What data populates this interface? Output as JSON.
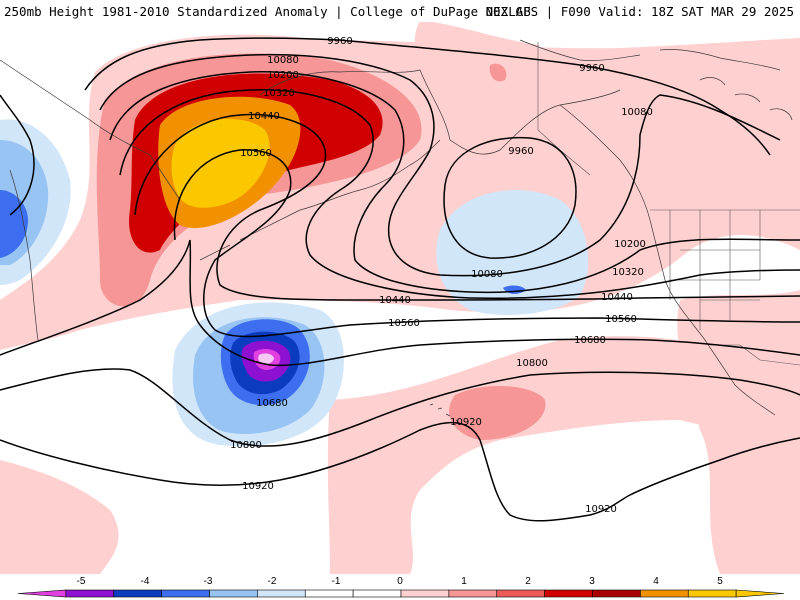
{
  "header": {
    "title": "250mb Height 1981-2010 Standardized Anomaly | College of DuPage NEXLAB",
    "run": "00Z GFS | F090 Valid: 18Z SAT MAR 29 2025"
  },
  "contour_labels": [
    "9960",
    "9960",
    "9960",
    "10080",
    "10080",
    "10080",
    "10200",
    "10200",
    "10320",
    "10320",
    "10440",
    "10440",
    "10440",
    "10560",
    "10560",
    "10560",
    "10680",
    "10680",
    "10800",
    "10800",
    "10920",
    "10920",
    "10920"
  ],
  "colorbar": {
    "ticks": [
      "-5",
      "-4",
      "-3",
      "-2",
      "-1",
      "0",
      "1",
      "2",
      "3",
      "4",
      "5"
    ],
    "colors": [
      "#e040e0",
      "#8e10d0",
      "#0b3cc0",
      "#3d6ef0",
      "#98c4f4",
      "#d2e6fa",
      "#ffffff",
      "#ffffff",
      "#ffd0d0",
      "#f69696",
      "#ee5a5a",
      "#d00000",
      "#a80000",
      "#f29100",
      "#fbc800",
      "#fbc800"
    ]
  }
}
